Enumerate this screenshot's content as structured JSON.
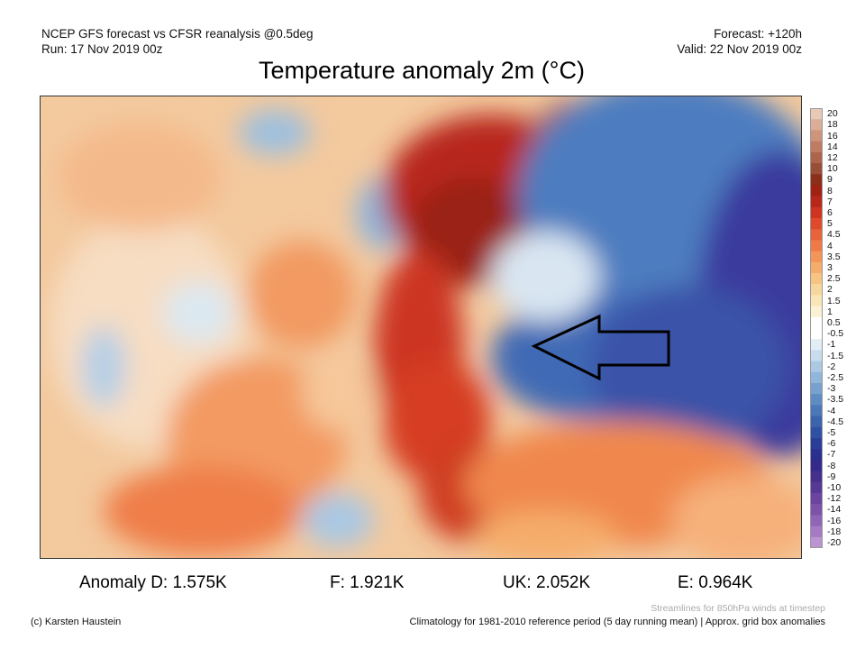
{
  "header": {
    "model": "NCEP GFS forecast vs CFSR reanalysis @0.5deg",
    "run": "Run: 17 Nov 2019 00z",
    "forecast": "Forecast: +120h",
    "valid": "Valid: 22 Nov 2019 00z"
  },
  "title": "Temperature anomaly 2m (°C)",
  "colorbar": {
    "labels": [
      "20",
      "18",
      "16",
      "14",
      "12",
      "10",
      "9",
      "8",
      "7",
      "6",
      "5",
      "4.5",
      "4",
      "3.5",
      "3",
      "2.5",
      "2",
      "1.5",
      "1",
      "0.5",
      "-0.5",
      "-1",
      "-1.5",
      "-2",
      "-2.5",
      "-3",
      "-3.5",
      "-4",
      "-4.5",
      "-5",
      "-6",
      "-7",
      "-8",
      "-9",
      "-10",
      "-12",
      "-14",
      "-16",
      "-18",
      "-20"
    ],
    "colors": [
      "#e8c9b8",
      "#dcae98",
      "#cf957c",
      "#c07c62",
      "#ad644c",
      "#9a4e38",
      "#8c2f1a",
      "#a12212",
      "#b8281a",
      "#cf3420",
      "#e04a2c",
      "#e8623a",
      "#ef7a48",
      "#f39458",
      "#f5ad6c",
      "#f7c484",
      "#f8d79e",
      "#f9e6b8",
      "#fbf2d6",
      "#ffffff",
      "#ffffff",
      "#e3edf5",
      "#c8dced",
      "#acc9e3",
      "#91b6d9",
      "#77a2ce",
      "#5e8dc3",
      "#4a78b8",
      "#3b64ad",
      "#3050a3",
      "#2a3e99",
      "#2b2f8f",
      "#352a8a",
      "#46308e",
      "#583896",
      "#6a44a0",
      "#7c52aa",
      "#9064b6",
      "#a57ac3",
      "#bb94d2"
    ]
  },
  "stats": {
    "d": "Anomaly D: 1.575K",
    "f": "F: 1.921K",
    "uk": "UK: 2.052K",
    "e": "E: 0.964K"
  },
  "footer": {
    "credit": "(c) Karsten Haustein",
    "streamlines": "Streamlines for 850hPa winds at timestep",
    "climatology": "Climatology for 1981-2010 reference period (5 day running mean) | Approx. grid box anomalies"
  }
}
